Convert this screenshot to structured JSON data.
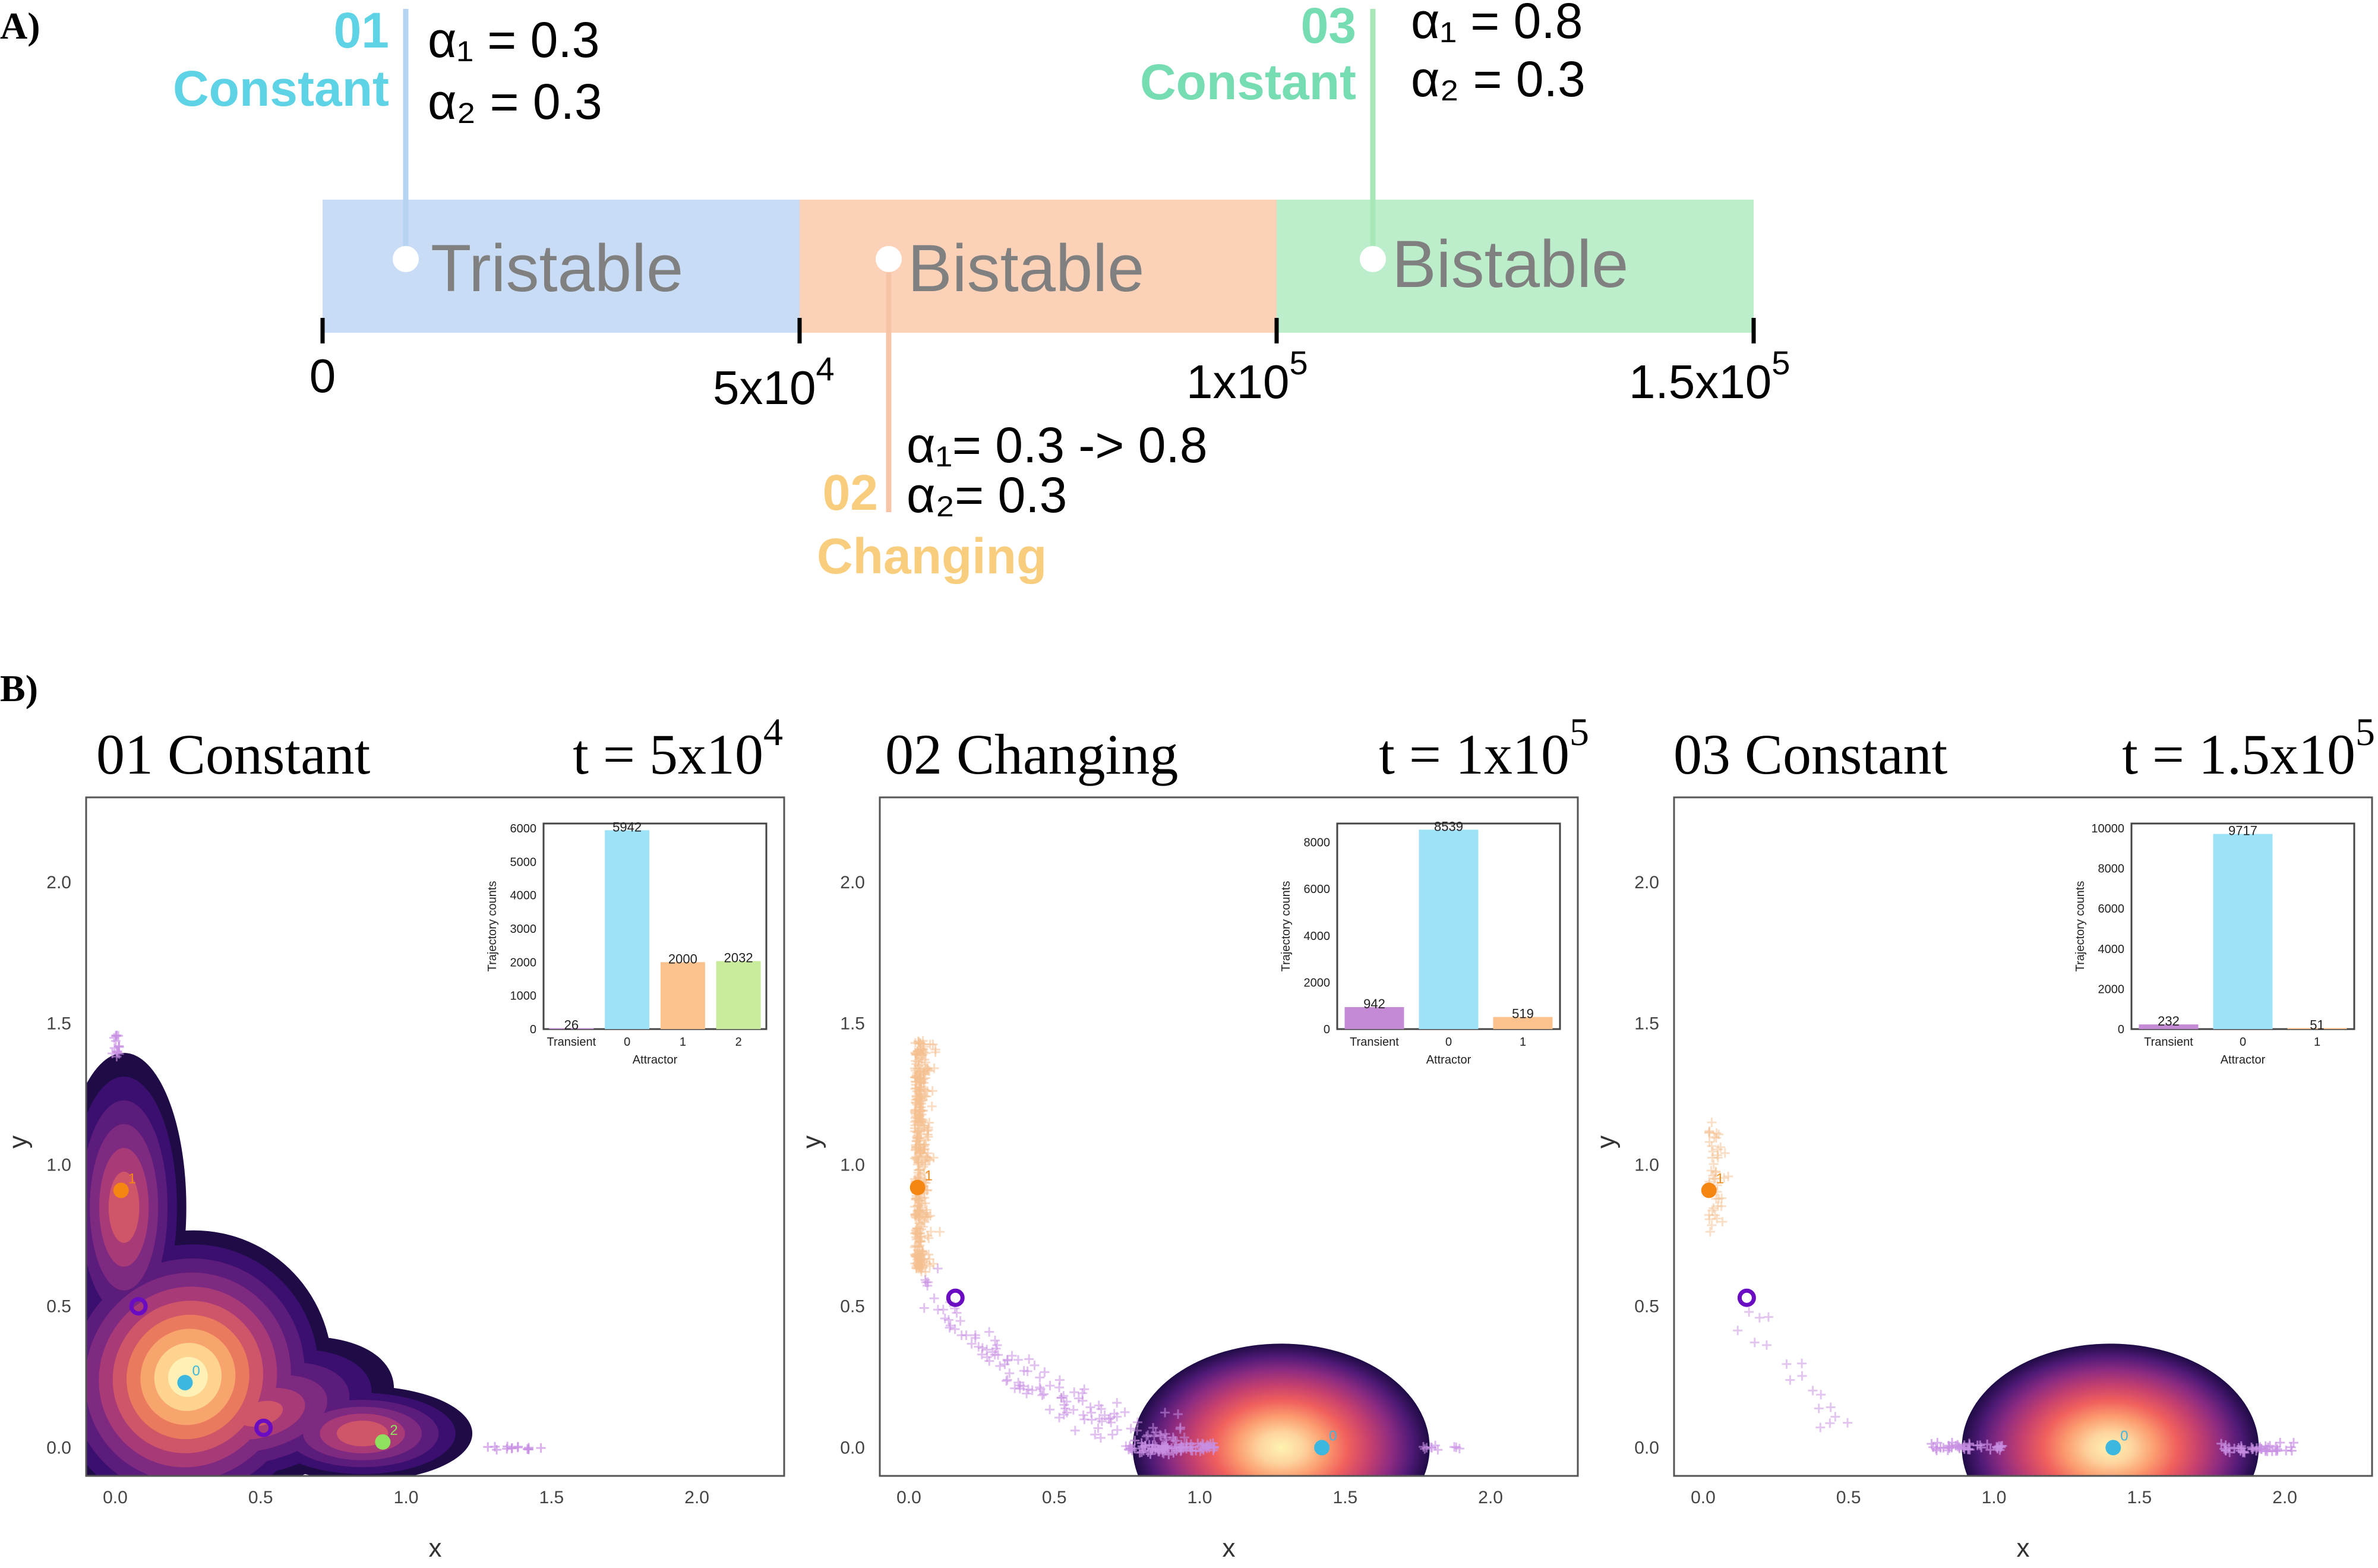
{
  "panel_a": {
    "label": "A)",
    "segments": [
      {
        "label": "Tristable",
        "color": "#c8dcf5"
      },
      {
        "label": "Bistable",
        "color": "#fbd2b8"
      },
      {
        "label": "Bistable",
        "color": "#bdeecb"
      }
    ],
    "timeline_ticks": [
      "0",
      "5x10",
      "1x10",
      "1.5x10"
    ],
    "tick_exponents": [
      "",
      "4",
      "5",
      "5"
    ],
    "phases": [
      {
        "number": "01",
        "name": "Constant",
        "color": "#5ed3e6",
        "line_color": "#b7d3f2",
        "alpha1": "α₁ = 0.3",
        "alpha2": "α₂ = 0.3"
      },
      {
        "number": "02",
        "name": "Changing",
        "color": "#f9cd7e",
        "line_color": "#f8c4a7",
        "alpha1": "α₁= 0.3 -> 0.8",
        "alpha2": "α₂= 0.3"
      },
      {
        "number": "03",
        "name": "Constant",
        "color": "#76ddb2",
        "line_color": "#a8e8b8",
        "alpha1": "α₁ = 0.8",
        "alpha2": "α₂ = 0.3"
      }
    ]
  },
  "panel_b": {
    "label": "B)",
    "colors": {
      "transient": "#c58ad6",
      "attr0": "#9ee2f8",
      "attr1": "#fcc28d",
      "attr2": "#c8eb9c",
      "pt0": "#3bb7e0",
      "pt1": "#f68612",
      "pt2": "#90e060",
      "saddle": "#6a0dc2",
      "scatter_purple": "#c78ee2",
      "scatter_orange": "#f4bf8f"
    }
  },
  "chart_data": [
    {
      "type": "scatter",
      "title": "01 Constant",
      "time_label": "t = 5x10",
      "time_exponent": "4",
      "xlabel": "x",
      "ylabel": "y",
      "xlim": [
        -0.1,
        2.3
      ],
      "ylim": [
        -0.1,
        2.3
      ],
      "xticks": [
        "0.0",
        "0.5",
        "1.0",
        "1.5",
        "2.0"
      ],
      "yticks": [
        "0.0",
        "0.5",
        "1.0",
        "1.5",
        "2.0"
      ],
      "attractors": [
        {
          "label": "0",
          "x": 0.24,
          "y": 0.23
        },
        {
          "label": "1",
          "x": 0.02,
          "y": 0.91
        },
        {
          "label": "2",
          "x": 0.92,
          "y": 0.02
        }
      ],
      "saddles": [
        {
          "x": 0.08,
          "y": 0.5
        },
        {
          "x": 0.51,
          "y": 0.07
        }
      ],
      "inset": {
        "xlabel": "Attractor",
        "ylabel": "Trajectory counts",
        "categories": [
          "Transient",
          "0",
          "1",
          "2"
        ],
        "values": [
          26,
          5942,
          2000,
          2032
        ],
        "yticks": [
          "0",
          "1000",
          "2000",
          "3000",
          "4000",
          "5000",
          "6000"
        ],
        "ylim": [
          0,
          6000
        ]
      }
    },
    {
      "type": "scatter",
      "title": "02 Changing",
      "time_label": "t = 1x10",
      "time_exponent": "5",
      "xlabel": "x",
      "ylabel": "y",
      "xlim": [
        -0.1,
        2.3
      ],
      "ylim": [
        -0.1,
        2.3
      ],
      "xticks": [
        "0.0",
        "0.5",
        "1.0",
        "1.5",
        "2.0"
      ],
      "yticks": [
        "0.0",
        "0.5",
        "1.0",
        "1.5",
        "2.0"
      ],
      "attractors": [
        {
          "label": "0",
          "x": 1.42,
          "y": 0.0
        },
        {
          "label": "1",
          "x": 0.03,
          "y": 0.92
        }
      ],
      "saddles": [
        {
          "x": 0.16,
          "y": 0.53
        }
      ],
      "inset": {
        "xlabel": "Attractor",
        "ylabel": "Trajectory counts",
        "categories": [
          "Transient",
          "0",
          "1"
        ],
        "values": [
          942,
          8539,
          519
        ],
        "yticks": [
          "0",
          "2000",
          "4000",
          "6000",
          "8000"
        ],
        "ylim": [
          0,
          8600
        ]
      }
    },
    {
      "type": "scatter",
      "title": "03 Constant",
      "time_label": "t = 1.5x10",
      "time_exponent": "5",
      "xlabel": "x",
      "ylabel": "y",
      "xlim": [
        -0.1,
        2.3
      ],
      "ylim": [
        -0.1,
        2.3
      ],
      "xticks": [
        "0.0",
        "0.5",
        "1.0",
        "1.5",
        "2.0"
      ],
      "yticks": [
        "0.0",
        "0.5",
        "1.0",
        "1.5",
        "2.0"
      ],
      "attractors": [
        {
          "label": "0",
          "x": 1.41,
          "y": 0.0
        },
        {
          "label": "1",
          "x": 0.02,
          "y": 0.91
        }
      ],
      "saddles": [
        {
          "x": 0.15,
          "y": 0.53
        }
      ],
      "inset": {
        "xlabel": "Attractor",
        "ylabel": "Trajectory counts",
        "categories": [
          "Transient",
          "0",
          "1"
        ],
        "values": [
          232,
          9717,
          51
        ],
        "yticks": [
          "0",
          "2000",
          "4000",
          "6000",
          "8000",
          "10000"
        ],
        "ylim": [
          0,
          10000
        ]
      }
    }
  ]
}
